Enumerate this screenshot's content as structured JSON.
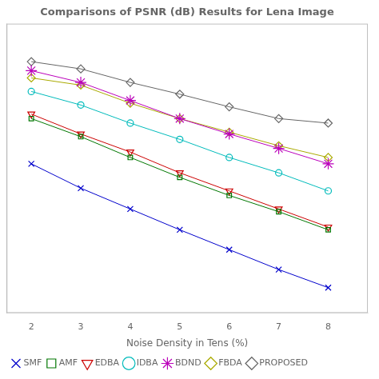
{
  "chart_data": {
    "type": "line",
    "title": "Comparisons of PSNR (dB) Results for Lena Image",
    "x_label": "Noise Density in Tens (%)",
    "x": [
      2,
      3,
      4,
      5,
      6,
      7,
      8
    ],
    "series": [
      {
        "name": "SMF",
        "color": "#0000cc",
        "marker": "x",
        "values": [
          36.5,
          33.8,
          31.5,
          29.2,
          27.0,
          24.8,
          22.8
        ]
      },
      {
        "name": "AMF",
        "color": "#007700",
        "marker": "square",
        "values": [
          41.5,
          39.5,
          37.2,
          35.0,
          33.0,
          31.2,
          29.2
        ]
      },
      {
        "name": "EDBA",
        "color": "#cc0000",
        "marker": "triangle_down",
        "values": [
          42.0,
          39.8,
          37.8,
          35.5,
          33.5,
          31.5,
          29.5
        ]
      },
      {
        "name": "IDBA",
        "color": "#00bbbb",
        "marker": "circle",
        "values": [
          44.5,
          43.0,
          41.0,
          39.2,
          37.2,
          35.5,
          33.5
        ]
      },
      {
        "name": "BDND",
        "color": "#bb00bb",
        "marker": "star",
        "values": [
          46.8,
          45.5,
          43.5,
          41.5,
          39.8,
          38.2,
          36.5
        ]
      },
      {
        "name": "FBDA",
        "color": "#aaaa00",
        "marker": "diamond",
        "values": [
          46.0,
          45.2,
          43.2,
          41.5,
          40.0,
          38.5,
          37.2
        ]
      },
      {
        "name": "PROPOSED",
        "color": "#666666",
        "marker": "diamond",
        "values": [
          47.8,
          47.0,
          45.5,
          44.2,
          42.8,
          41.5,
          41.0
        ]
      }
    ],
    "xlim": [
      1.5,
      8.8
    ],
    "xticks": [
      2,
      3,
      4,
      5,
      6,
      7,
      8
    ],
    "ylim": [
      20,
      52
    ],
    "tick_labels": "x",
    "grid": false,
    "legend": "lower left"
  }
}
